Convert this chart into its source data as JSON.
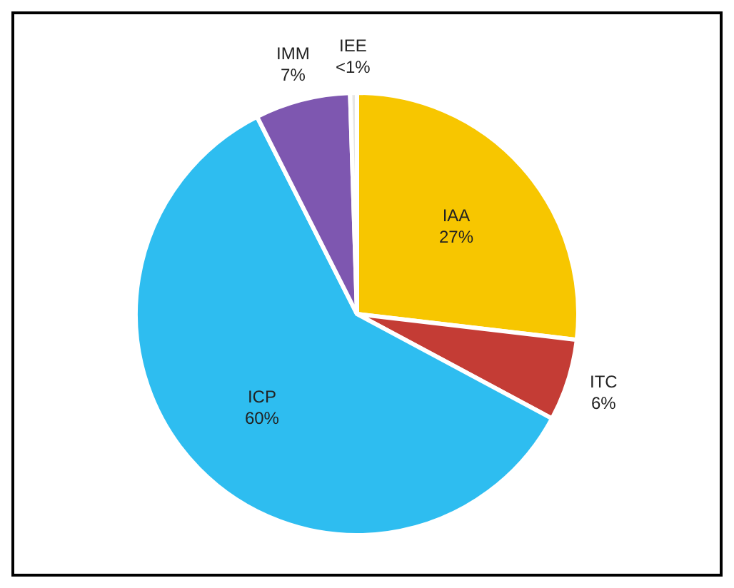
{
  "chart_data": {
    "type": "pie",
    "categories": [
      "IAA",
      "ITC",
      "ICP",
      "IMM",
      "IEE"
    ],
    "values": [
      27,
      6,
      60,
      7,
      0.5
    ],
    "value_labels": [
      "27%",
      "6%",
      "60%",
      "7%",
      "<1%"
    ],
    "colors": [
      "#f7c600",
      "#c43c35",
      "#2ebdf0",
      "#7e57b0",
      "#e6e6e6"
    ],
    "legend": false
  }
}
